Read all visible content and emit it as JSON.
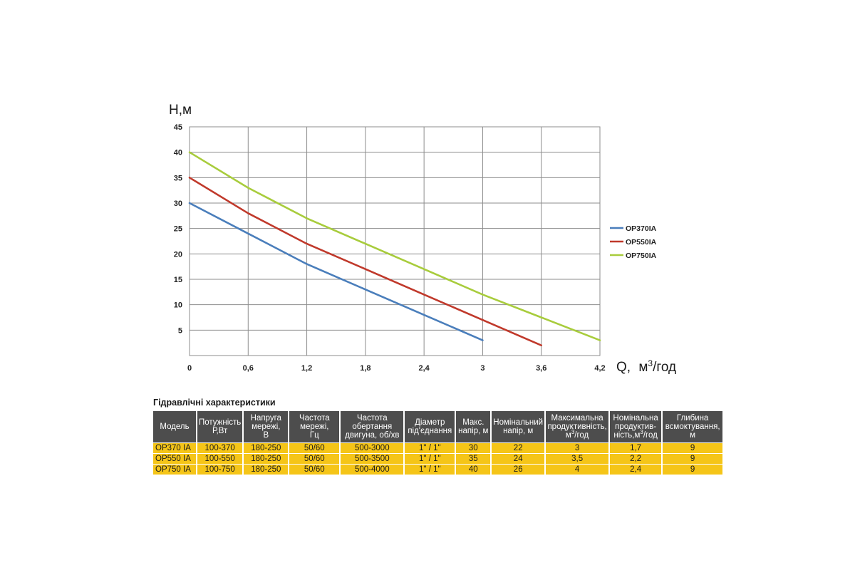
{
  "chart_data": {
    "type": "line",
    "ylabel": "H,м",
    "xlabel": "Q, м³/год",
    "xlabel_main": "Q,",
    "xlabel_unit_pre": "м",
    "xlabel_unit_sup": "3",
    "xlabel_unit_post": "/год",
    "xlim": [
      0,
      4.2
    ],
    "ylim": [
      0,
      45
    ],
    "grid": true,
    "legend_position": "right",
    "x_ticks": [
      {
        "value": 0,
        "label": "0"
      },
      {
        "value": 0.6,
        "label": "0,6"
      },
      {
        "value": 1.2,
        "label": "1,2"
      },
      {
        "value": 1.8,
        "label": "1,8"
      },
      {
        "value": 2.4,
        "label": "2,4"
      },
      {
        "value": 3,
        "label": "3"
      },
      {
        "value": 3.6,
        "label": "3,6"
      },
      {
        "value": 4.2,
        "label": "4,2"
      }
    ],
    "y_ticks": [
      {
        "value": 5,
        "label": "5"
      },
      {
        "value": 10,
        "label": "10"
      },
      {
        "value": 15,
        "label": "15"
      },
      {
        "value": 20,
        "label": "20"
      },
      {
        "value": 25,
        "label": "25"
      },
      {
        "value": 30,
        "label": "30"
      },
      {
        "value": 35,
        "label": "35"
      },
      {
        "value": 40,
        "label": "40"
      },
      {
        "value": 45,
        "label": "45"
      }
    ],
    "series": [
      {
        "name": "OP370IA",
        "color": "#4a7ebb",
        "points": [
          [
            0,
            30
          ],
          [
            0.6,
            24
          ],
          [
            1.2,
            18
          ],
          [
            1.8,
            13
          ],
          [
            2.4,
            8
          ],
          [
            3,
            3
          ]
        ]
      },
      {
        "name": "OP550IA",
        "color": "#c0392b",
        "points": [
          [
            0,
            35
          ],
          [
            0.6,
            28
          ],
          [
            1.2,
            22
          ],
          [
            1.8,
            17
          ],
          [
            2.4,
            12
          ],
          [
            3,
            7
          ],
          [
            3.6,
            2
          ]
        ]
      },
      {
        "name": "OP750IA",
        "color": "#a8cc3c",
        "points": [
          [
            0,
            40
          ],
          [
            0.6,
            33
          ],
          [
            1.2,
            27
          ],
          [
            1.8,
            22
          ],
          [
            2.4,
            17
          ],
          [
            3,
            12
          ],
          [
            3.6,
            7.5
          ],
          [
            4.2,
            3
          ]
        ]
      }
    ]
  },
  "table": {
    "title": "Гідравлічні характеристики",
    "headers": [
      {
        "lines": [
          "Модель"
        ]
      },
      {
        "lines": [
          "Потужність",
          "Р,Вт"
        ]
      },
      {
        "lines": [
          "Напруга",
          "мережі,",
          "В"
        ]
      },
      {
        "lines": [
          "Частота",
          "мережі,",
          "Гц"
        ]
      },
      {
        "lines": [
          "Частота",
          "обертання",
          "двигуна, об/хв"
        ]
      },
      {
        "lines": [
          "Діаметр",
          "під'єднання"
        ]
      },
      {
        "lines": [
          "Макс.",
          "напір, м"
        ]
      },
      {
        "lines": [
          "Номінальний",
          "напір, м"
        ]
      },
      {
        "lines": [
          "Максимальна",
          "продуктивність,",
          "м3/год"
        ]
      },
      {
        "lines": [
          "Номінальна",
          "продуктив-",
          "ність,м3/год"
        ]
      },
      {
        "lines": [
          "Глибина",
          "всмоктування,",
          "м"
        ]
      }
    ],
    "rows": [
      [
        "OP370 IA",
        "100-370",
        "180-250",
        "50/60",
        "500-3000",
        "1\" / 1\"",
        "30",
        "22",
        "3",
        "1,7",
        "9"
      ],
      [
        "OP550 IA",
        "100-550",
        "180-250",
        "50/60",
        "500-3500",
        "1\" / 1\"",
        "35",
        "24",
        "3,5",
        "2,2",
        "9"
      ],
      [
        "OP750 IA",
        "100-750",
        "180-250",
        "50/60",
        "500-4000",
        "1\" / 1\"",
        "40",
        "26",
        "4",
        "2,4",
        "9"
      ]
    ]
  }
}
